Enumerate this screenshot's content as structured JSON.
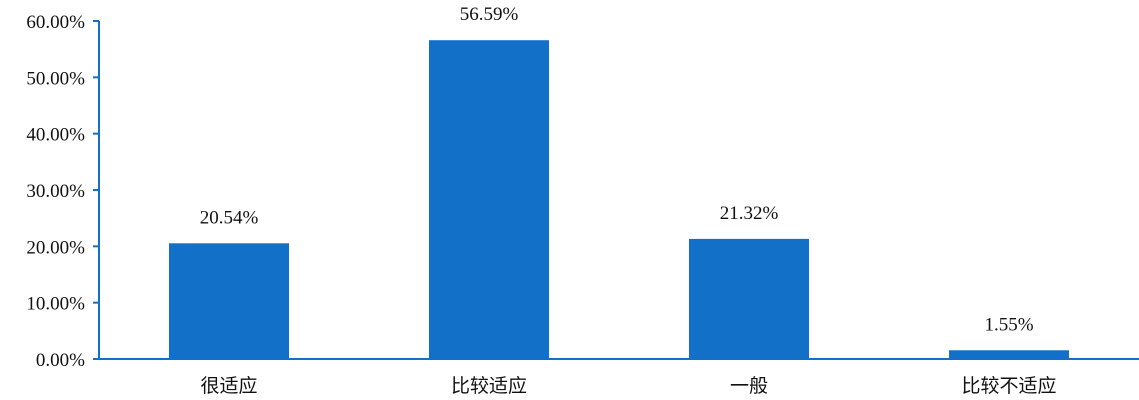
{
  "chart_data": {
    "type": "bar",
    "categories": [
      "很适应",
      "比较适应",
      "一般",
      "比较不适应"
    ],
    "values": [
      20.54,
      56.59,
      21.32,
      1.55
    ],
    "data_labels": [
      "20.54%",
      "56.59%",
      "21.32%",
      "1.55%"
    ],
    "y_ticks": [
      0,
      10,
      20,
      30,
      40,
      50,
      60
    ],
    "y_tick_labels": [
      "0.00%",
      "10.00%",
      "20.00%",
      "30.00%",
      "40.00%",
      "50.00%",
      "60.00%"
    ],
    "ylim": [
      0,
      60
    ],
    "grid": false,
    "legend": "none",
    "colors": {
      "bar": "#1270c8",
      "axis": "#1270c8",
      "text": "#111111"
    }
  }
}
